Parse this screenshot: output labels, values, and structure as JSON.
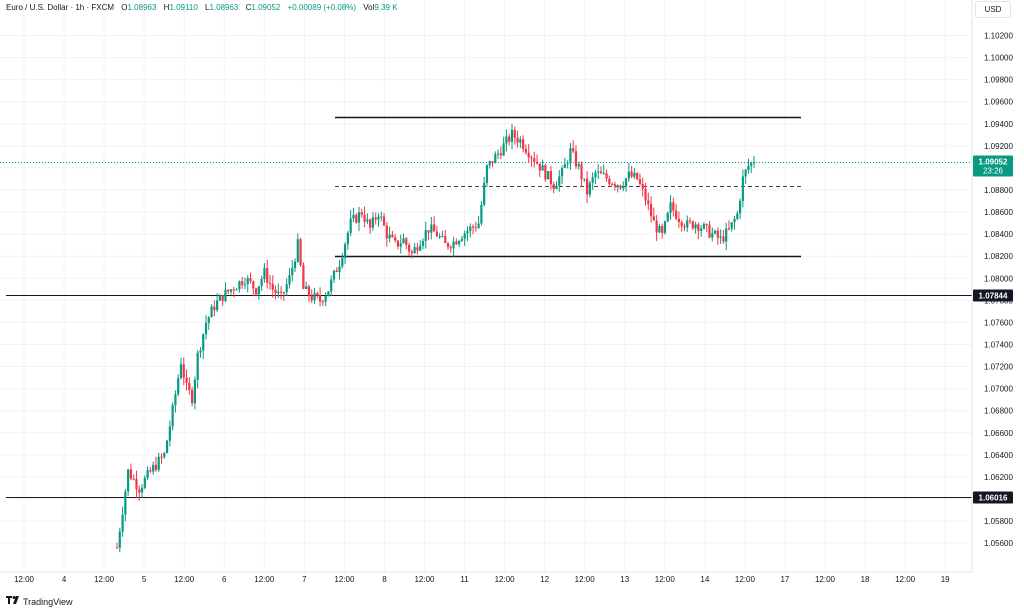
{
  "header": {
    "symbol": "Euro / U.S. Dollar · 1h · FXCM",
    "open_label": "O",
    "open": "1.08963",
    "high_label": "H",
    "high": "1.09110",
    "low_label": "L",
    "low": "1.08963",
    "close_label": "C",
    "close": "1.09052",
    "change": "+0.00089 (+0.08%)",
    "vol_label": "Vol",
    "vol": "9.39 K"
  },
  "currency_button": "USD",
  "logo_text": "TradingView",
  "colors": {
    "up": "#089981",
    "down": "#f23645",
    "grid": "#f0f3fa",
    "level": "#131722"
  },
  "chart_data": {
    "type": "candlestick",
    "y_ticks": [
      "1.10200",
      "1.10000",
      "1.09800",
      "1.09600",
      "1.09400",
      "1.09200",
      "1.09000",
      "1.08800",
      "1.08600",
      "1.08400",
      "1.08200",
      "1.08000",
      "1.07800",
      "1.07600",
      "1.07400",
      "1.07200",
      "1.07000",
      "1.06800",
      "1.06600",
      "1.06400",
      "1.06200",
      "1.06000",
      "1.05800",
      "1.05600"
    ],
    "ylim": [
      1.0556,
      1.1031
    ],
    "x_ticks": [
      "12:00",
      "4",
      "12:00",
      "5",
      "12:00",
      "6",
      "12:00",
      "7",
      "12:00",
      "8",
      "12:00",
      "11",
      "12:00",
      "12",
      "12:00",
      "13",
      "12:00",
      "14",
      "12:00",
      "17",
      "12:00",
      "18",
      "12:00",
      "19"
    ],
    "last_price": {
      "label": "1.09052",
      "countdown": "23:26",
      "value": 1.09052
    },
    "horizontal_levels": [
      {
        "label": "1.07844",
        "value": 1.07844
      },
      {
        "label": "1.06016",
        "value": 1.06016
      }
    ],
    "range_lines": [
      {
        "value": 1.09465,
        "style": "solid"
      },
      {
        "value": 1.0884,
        "style": "dashed"
      },
      {
        "value": 1.08205,
        "style": "solid"
      }
    ],
    "price_path": [
      [
        0,
        1.0556
      ],
      [
        4,
        1.0625
      ],
      [
        8,
        1.061
      ],
      [
        13,
        1.0628
      ],
      [
        17,
        1.064
      ],
      [
        20,
        1.068
      ],
      [
        23,
        1.0725
      ],
      [
        25,
        1.07
      ],
      [
        27,
        1.0692
      ],
      [
        29,
        1.073
      ],
      [
        32,
        1.076
      ],
      [
        35,
        1.0775
      ],
      [
        38,
        1.0784
      ],
      [
        42,
        1.0792
      ],
      [
        46,
        1.08
      ],
      [
        50,
        1.079
      ],
      [
        53,
        1.0805
      ],
      [
        56,
        1.079
      ],
      [
        59,
        1.0782
      ],
      [
        62,
        1.08
      ],
      [
        65,
        1.083
      ],
      [
        67,
        1.079
      ],
      [
        70,
        1.0783
      ],
      [
        73,
        1.078
      ],
      [
        76,
        1.079
      ],
      [
        80,
        1.0815
      ],
      [
        84,
        1.085
      ],
      [
        88,
        1.086
      ],
      [
        91,
        1.0845
      ],
      [
        94,
        1.086
      ],
      [
        97,
        1.084
      ],
      [
        100,
        1.083
      ],
      [
        103,
        1.0835
      ],
      [
        106,
        1.0822
      ],
      [
        109,
        1.0835
      ],
      [
        112,
        1.0845
      ],
      [
        115,
        1.084
      ],
      [
        118,
        1.083
      ],
      [
        121,
        1.0833
      ],
      [
        124,
        1.084
      ],
      [
        127,
        1.0845
      ],
      [
        130,
        1.085
      ],
      [
        133,
        1.09
      ],
      [
        136,
        1.091
      ],
      [
        139,
        1.092
      ],
      [
        142,
        1.093
      ],
      [
        145,
        1.0925
      ],
      [
        148,
        1.0915
      ],
      [
        151,
        1.0905
      ],
      [
        154,
        1.0895
      ],
      [
        157,
        1.0885
      ],
      [
        160,
        1.0895
      ],
      [
        163,
        1.0915
      ],
      [
        166,
        1.09
      ],
      [
        169,
        1.0878
      ],
      [
        172,
        1.0895
      ],
      [
        175,
        1.0892
      ],
      [
        178,
        1.0888
      ],
      [
        181,
        1.0885
      ],
      [
        184,
        1.0893
      ],
      [
        187,
        1.089
      ],
      [
        190,
        1.0872
      ],
      [
        193,
        1.085
      ],
      [
        196,
        1.0838
      ],
      [
        199,
        1.0865
      ],
      [
        202,
        1.0855
      ],
      [
        205,
        1.0848
      ],
      [
        208,
        1.085
      ],
      [
        211,
        1.0845
      ],
      [
        214,
        1.084
      ],
      [
        217,
        1.0835
      ],
      [
        220,
        1.0843
      ],
      [
        223,
        1.0858
      ],
      [
        225,
        1.089
      ],
      [
        227,
        1.0902
      ],
      [
        229,
        1.09052
      ]
    ]
  }
}
